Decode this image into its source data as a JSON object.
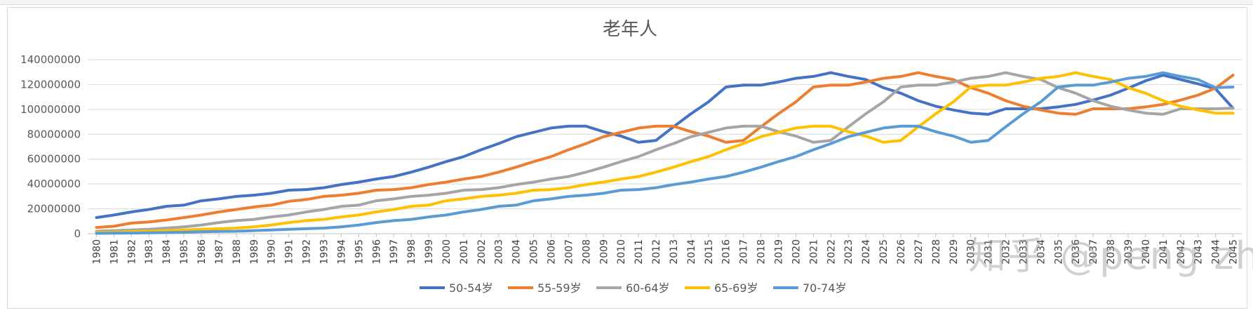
{
  "watermark": "知乎 @peng zhang",
  "chart_data": {
    "type": "line",
    "title": "老年人",
    "xlabel": "",
    "ylabel": "",
    "ylim": [
      0,
      140000000
    ],
    "yticks": [
      0,
      20000000,
      40000000,
      60000000,
      80000000,
      100000000,
      120000000,
      140000000
    ],
    "ytick_labels": [
      "0",
      "20000000",
      "40000000",
      "60000000",
      "80000000",
      "100000000",
      "120000000",
      "140000000"
    ],
    "grid": true,
    "legend_position": "bottom",
    "x": [
      "1980",
      "1981",
      "1982",
      "1983",
      "1984",
      "1985",
      "1986",
      "1987",
      "1988",
      "1989",
      "1990",
      "1991",
      "1992",
      "1993",
      "1994",
      "1995",
      "1996",
      "1997",
      "1998",
      "1999",
      "2000",
      "2001",
      "2002",
      "2003",
      "2004",
      "2005",
      "2006",
      "2007",
      "2008",
      "2009",
      "2010",
      "2011",
      "2012",
      "2013",
      "2014",
      "2015",
      "2016",
      "2017",
      "2018",
      "2019",
      "2020",
      "2021",
      "2022",
      "2023",
      "2024",
      "2025",
      "2026",
      "2027",
      "2028",
      "2029",
      "2030",
      "2031",
      "2032",
      "2033",
      "2034",
      "2035",
      "2036",
      "2037",
      "2038",
      "2039",
      "2040",
      "2041",
      "2042",
      "2043",
      "2044",
      "2045"
    ],
    "series": [
      {
        "name": "50-54岁",
        "color": "#4472c4",
        "values": [
          13000000,
          15000000,
          17500000,
          19500000,
          22000000,
          23000000,
          26500000,
          28000000,
          30000000,
          31000000,
          32500000,
          35000000,
          35500000,
          37000000,
          39500000,
          41500000,
          44000000,
          46000000,
          49500000,
          53500000,
          58000000,
          62000000,
          67500000,
          72500000,
          78000000,
          81500000,
          85000000,
          86500000,
          86500000,
          82000000,
          78500000,
          73500000,
          75000000,
          86000000,
          96500000,
          106000000,
          118000000,
          119500000,
          119500000,
          122000000,
          125000000,
          126500000,
          129500000,
          126500000,
          124000000,
          117500000,
          113000000,
          107000000,
          102500000,
          99500000,
          97000000,
          96000000,
          100500000,
          100500000,
          100500000,
          102000000,
          104000000,
          107500000,
          111500000,
          117000000,
          123000000,
          127500000,
          124000000,
          120500000,
          116500000,
          101000000
        ]
      },
      {
        "name": "55-59岁",
        "color": "#ed7d31",
        "values": [
          5000000,
          6000000,
          8500000,
          9500000,
          11000000,
          13000000,
          15000000,
          17500000,
          19500000,
          21500000,
          23000000,
          26000000,
          27500000,
          30000000,
          31000000,
          32500000,
          35000000,
          35500000,
          37000000,
          39500000,
          41500000,
          44000000,
          46000000,
          49500000,
          53500000,
          58000000,
          62000000,
          67500000,
          72500000,
          78000000,
          81500000,
          85000000,
          86500000,
          86500000,
          82000000,
          78500000,
          73500000,
          75000000,
          86000000,
          96500000,
          106000000,
          118000000,
          119500000,
          119500000,
          122000000,
          125000000,
          126500000,
          129500000,
          126500000,
          124000000,
          117500000,
          113000000,
          107000000,
          102500000,
          99500000,
          97000000,
          96000000,
          100500000,
          100500000,
          100500000,
          102000000,
          104000000,
          107500000,
          111500000,
          117000000,
          127500000
        ]
      },
      {
        "name": "60-64岁",
        "color": "#a5a5a5",
        "values": [
          2000000,
          2500000,
          3000000,
          3500000,
          4500000,
          5500000,
          7000000,
          9000000,
          10500000,
          11500000,
          13500000,
          15000000,
          17500000,
          19500000,
          22000000,
          23000000,
          26500000,
          28000000,
          30000000,
          31000000,
          32500000,
          35000000,
          35500000,
          37000000,
          39500000,
          41500000,
          44000000,
          46000000,
          49500000,
          53500000,
          58000000,
          62000000,
          67500000,
          72500000,
          78000000,
          81500000,
          85000000,
          86500000,
          86500000,
          82000000,
          78500000,
          73500000,
          75000000,
          86000000,
          96500000,
          106000000,
          118000000,
          119500000,
          119500000,
          122000000,
          125000000,
          126500000,
          129500000,
          126500000,
          124000000,
          117500000,
          113000000,
          107000000,
          102500000,
          99500000,
          97000000,
          96000000,
          100500000,
          100500000,
          100500000,
          101000000
        ]
      },
      {
        "name": "65-69岁",
        "color": "#ffc000",
        "values": [
          1000000,
          1200000,
          1500000,
          2000000,
          2500000,
          3000000,
          3500000,
          4000000,
          4500000,
          5500000,
          7000000,
          9000000,
          10500000,
          11500000,
          13500000,
          15000000,
          17500000,
          19500000,
          22000000,
          23000000,
          26500000,
          28000000,
          30000000,
          31000000,
          32500000,
          35000000,
          35500000,
          37000000,
          39500000,
          41500000,
          44000000,
          46000000,
          49500000,
          53500000,
          58000000,
          62000000,
          67500000,
          72500000,
          78000000,
          81500000,
          85000000,
          86500000,
          86500000,
          82000000,
          78500000,
          73500000,
          75000000,
          86000000,
          96500000,
          106000000,
          118000000,
          119500000,
          119500000,
          122000000,
          125000000,
          126500000,
          129500000,
          126500000,
          124000000,
          117500000,
          113000000,
          107000000,
          102500000,
          99500000,
          97000000,
          97000000
        ]
      },
      {
        "name": "70-74岁",
        "color": "#5b9bd5",
        "values": [
          300000,
          400000,
          500000,
          700000,
          900000,
          1200000,
          1500000,
          1800000,
          2000000,
          2500000,
          3000000,
          3500000,
          4000000,
          4500000,
          5500000,
          7000000,
          9000000,
          10500000,
          11500000,
          13500000,
          15000000,
          17500000,
          19500000,
          22000000,
          23000000,
          26500000,
          28000000,
          30000000,
          31000000,
          32500000,
          35000000,
          35500000,
          37000000,
          39500000,
          41500000,
          44000000,
          46000000,
          49500000,
          53500000,
          58000000,
          62000000,
          67500000,
          72500000,
          78000000,
          81500000,
          85000000,
          86500000,
          86500000,
          82000000,
          78500000,
          73500000,
          75000000,
          86000000,
          96500000,
          106000000,
          118000000,
          119500000,
          119500000,
          122000000,
          125000000,
          126500000,
          129500000,
          126500000,
          124000000,
          117500000,
          118000000
        ]
      }
    ]
  }
}
